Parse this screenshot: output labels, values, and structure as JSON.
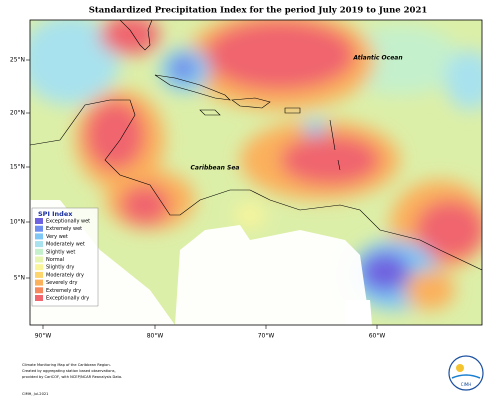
{
  "header": {
    "title": "Standardized Precipitation Index for the period July 2019 to June 2021"
  },
  "map": {
    "labels": [
      {
        "text": "Atlantic Ocean"
      },
      {
        "text": "Caribbean Sea"
      }
    ],
    "lat_ticks": [
      "25°N",
      "20°N",
      "15°N",
      "10°N",
      "5°N"
    ],
    "lon_ticks": [
      "90°W",
      "80°W",
      "70°W",
      "60°W"
    ]
  },
  "legend": {
    "title": "SPI Index",
    "items": [
      {
        "label": "Exceptionally wet",
        "color": "#6f62e0"
      },
      {
        "label": "Extremely wet",
        "color": "#6f8ff0"
      },
      {
        "label": "Very wet",
        "color": "#7fc8f5"
      },
      {
        "label": "Moderately wet",
        "color": "#a8e2ee"
      },
      {
        "label": "Slightly wet",
        "color": "#c4f0cc"
      },
      {
        "label": "Normal",
        "color": "#e6f5b0"
      },
      {
        "label": "Slightly dry",
        "color": "#fbf59a"
      },
      {
        "label": "Moderately dry",
        "color": "#fdd56c"
      },
      {
        "label": "Severely dry",
        "color": "#fbb05c"
      },
      {
        "label": "Extremely dry",
        "color": "#f6885e"
      },
      {
        "label": "Exceptionally dry",
        "color": "#f0656e"
      }
    ]
  },
  "footer": {
    "notes": [
      "Climate Monitoring Map of the Caribbean Region.",
      "Created by aggregating station based observations,",
      "provided by CariCOF, with NCEP/NCAR Reanalysis Data."
    ],
    "credit": "CIMH, Jul-2021",
    "logo": "CIMH"
  }
}
